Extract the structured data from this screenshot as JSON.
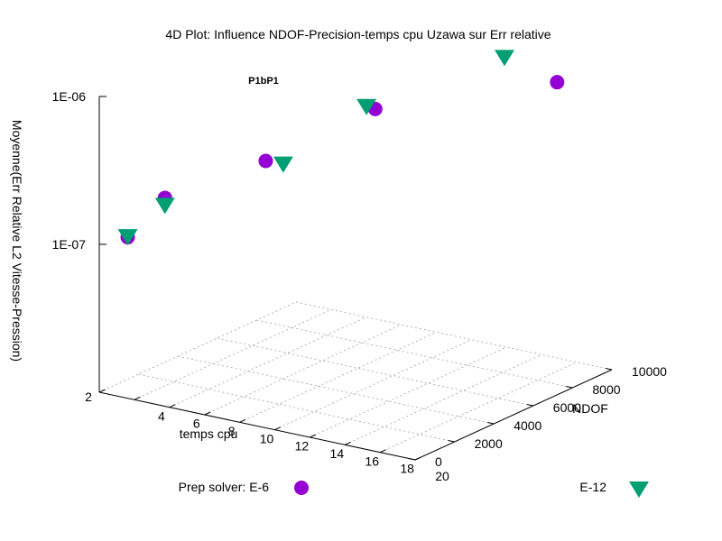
{
  "chart_data": {
    "type": "scatter",
    "title": "4D Plot: Influence NDOF-Precision-temps cpu Uzawa sur Err relative",
    "subtitle": "P1bP1",
    "xlabel": "temps cpu",
    "ylabel": "NDOF",
    "zlabel": "Moyenne(Err Relative L2 Vitesse-Pression)",
    "xlim": [
      2,
      20
    ],
    "ylim": [
      0,
      10000
    ],
    "zlim": [
      1e-08,
      1e-06
    ],
    "zscale": "log",
    "x_ticks": [
      "2",
      "4",
      "6",
      "8",
      "10",
      "12",
      "14",
      "16",
      "18",
      "20"
    ],
    "y_ticks": [
      "0",
      "2000",
      "4000",
      "6000",
      "8000",
      "10000"
    ],
    "z_ticks": [
      "1E-07",
      "1E-06"
    ],
    "grid": true,
    "legend_placement": "bottom",
    "series": [
      {
        "name": "Prep solver: E-6",
        "label": "Prep solver: E-6",
        "marker": "circle",
        "color": "#9400d3",
        "points": [
          {
            "x": 2.5,
            "y": 1000,
            "z": 1e-07
          },
          {
            "x": 3.5,
            "y": 2000,
            "z": 1.7e-07
          },
          {
            "x": 7.0,
            "y": 4000,
            "z": 2.8e-07
          },
          {
            "x": 11.0,
            "y": 6000,
            "z": 6e-07
          },
          {
            "x": 18.0,
            "y": 9000,
            "z": 9e-07
          }
        ]
      },
      {
        "name": "E-12",
        "label": "E-12",
        "marker": "triangle-down",
        "color": "#009e73",
        "points": [
          {
            "x": 2.5,
            "y": 1000,
            "z": 1e-07
          },
          {
            "x": 3.5,
            "y": 2000,
            "z": 1.5e-07
          },
          {
            "x": 8.0,
            "y": 4000,
            "z": 2.8e-07
          },
          {
            "x": 10.5,
            "y": 6000,
            "z": 6e-07
          },
          {
            "x": 15.0,
            "y": 9000,
            "z": 1.1e-06
          }
        ]
      }
    ]
  }
}
